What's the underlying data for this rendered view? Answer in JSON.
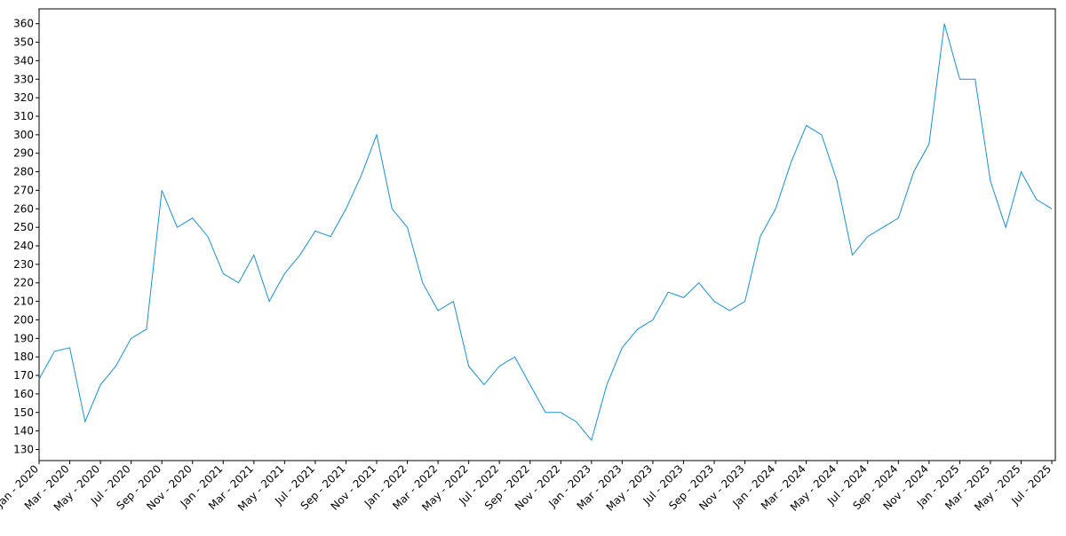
{
  "chart_data": {
    "type": "line",
    "x": [
      "2020-01",
      "2020-02",
      "2020-03",
      "2020-04",
      "2020-05",
      "2020-06",
      "2020-07",
      "2020-08",
      "2020-09",
      "2020-10",
      "2020-11",
      "2020-12",
      "2021-01",
      "2021-02",
      "2021-03",
      "2021-04",
      "2021-05",
      "2021-06",
      "2021-07",
      "2021-08",
      "2021-09",
      "2021-10",
      "2021-11",
      "2021-12",
      "2022-01",
      "2022-02",
      "2022-03",
      "2022-04",
      "2022-05",
      "2022-06",
      "2022-07",
      "2022-08",
      "2022-09",
      "2022-10",
      "2022-11",
      "2022-12",
      "2023-01",
      "2023-02",
      "2023-03",
      "2023-04",
      "2023-05",
      "2023-06",
      "2023-07",
      "2023-08",
      "2023-09",
      "2023-10",
      "2023-11",
      "2023-12",
      "2024-01",
      "2024-02",
      "2024-03",
      "2024-04",
      "2024-05",
      "2024-06",
      "2024-07",
      "2024-08",
      "2024-09",
      "2024-10",
      "2024-11",
      "2024-12",
      "2025-01",
      "2025-02",
      "2025-03",
      "2025-04",
      "2025-05",
      "2025-06",
      "2025-07"
    ],
    "series": [
      {
        "color": "#1a8fd6",
        "values": [
          168,
          183,
          185,
          145,
          165,
          175,
          190,
          195,
          270,
          250,
          255,
          245,
          225,
          220,
          235,
          210,
          225,
          235,
          248,
          245,
          260,
          278,
          300,
          260,
          250,
          220,
          205,
          210,
          175,
          165,
          175,
          180,
          165,
          150,
          150,
          145,
          135,
          165,
          185,
          195,
          200,
          215,
          212,
          220,
          210,
          205,
          210,
          245,
          260,
          285,
          305,
          300,
          275,
          235,
          245,
          250,
          255,
          280,
          295,
          360,
          330,
          330,
          275,
          250,
          280,
          265,
          260
        ]
      }
    ],
    "xlim": [
      "2020-01",
      "2025-07"
    ],
    "xticks": [
      {
        "value": "2020-01",
        "label": "Jan - 2020"
      },
      {
        "value": "2020-03",
        "label": "Mar - 2020"
      },
      {
        "value": "2020-05",
        "label": "May - 2020"
      },
      {
        "value": "2020-07",
        "label": "Jul - 2020"
      },
      {
        "value": "2020-09",
        "label": "Sep - 2020"
      },
      {
        "value": "2020-11",
        "label": "Nov - 2020"
      },
      {
        "value": "2021-01",
        "label": "Jan - 2021"
      },
      {
        "value": "2021-03",
        "label": "Mar - 2021"
      },
      {
        "value": "2021-05",
        "label": "May - 2021"
      },
      {
        "value": "2021-07",
        "label": "Jul - 2021"
      },
      {
        "value": "2021-09",
        "label": "Sep - 2021"
      },
      {
        "value": "2021-11",
        "label": "Nov - 2021"
      },
      {
        "value": "2022-01",
        "label": "Jan - 2022"
      },
      {
        "value": "2022-03",
        "label": "Mar - 2022"
      },
      {
        "value": "2022-05",
        "label": "May - 2022"
      },
      {
        "value": "2022-07",
        "label": "Jul - 2022"
      },
      {
        "value": "2022-09",
        "label": "Sep - 2022"
      },
      {
        "value": "2022-11",
        "label": "Nov - 2022"
      },
      {
        "value": "2023-01",
        "label": "Jan - 2023"
      },
      {
        "value": "2023-03",
        "label": "Mar - 2023"
      },
      {
        "value": "2023-05",
        "label": "May - 2023"
      },
      {
        "value": "2023-07",
        "label": "Jul - 2023"
      },
      {
        "value": "2023-09",
        "label": "Sep - 2023"
      },
      {
        "value": "2023-11",
        "label": "Nov - 2023"
      },
      {
        "value": "2024-01",
        "label": "Jan - 2024"
      },
      {
        "value": "2024-03",
        "label": "Mar - 2024"
      },
      {
        "value": "2024-05",
        "label": "May - 2024"
      },
      {
        "value": "2024-07",
        "label": "Jul - 2024"
      },
      {
        "value": "2024-09",
        "label": "Sep - 2024"
      },
      {
        "value": "2024-11",
        "label": "Nov - 2024"
      },
      {
        "value": "2025-01",
        "label": "Jan - 2025"
      },
      {
        "value": "2025-03",
        "label": "Mar - 2025"
      },
      {
        "value": "2025-05",
        "label": "May - 2025"
      },
      {
        "value": "2025-07",
        "label": "Jul - 2025"
      }
    ],
    "ylim": [
      124,
      368
    ],
    "yticks": [
      130,
      140,
      150,
      160,
      170,
      180,
      190,
      200,
      210,
      220,
      230,
      240,
      250,
      260,
      270,
      280,
      290,
      300,
      310,
      320,
      330,
      340,
      350,
      360
    ],
    "grid": false
  }
}
